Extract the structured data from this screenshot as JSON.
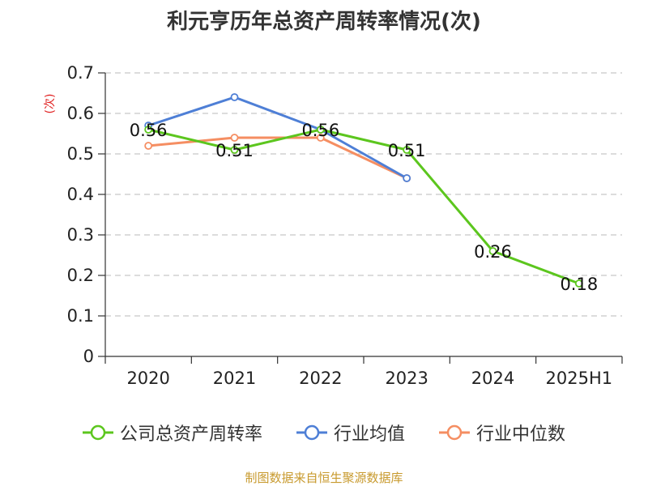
{
  "title": "利元亨历年总资产周转率情况(次)",
  "source_note": "制图数据来自恒生聚源数据库",
  "colors": {
    "company": "#5cc61e",
    "industry_avg": "#4e7fd6",
    "industry_median": "#f58e62"
  },
  "chart_data": {
    "type": "line",
    "title": "利元亨历年总资产周转率情况(次)",
    "ylabel": "(次)",
    "xlabel": "",
    "categories": [
      "2020",
      "2021",
      "2022",
      "2023",
      "2024",
      "2025H1"
    ],
    "ylim": [
      0,
      0.7
    ],
    "yticks": [
      0,
      0.1,
      0.2,
      0.3,
      0.4,
      0.5,
      0.6,
      0.7
    ],
    "ytick_labels": [
      "0",
      "0.1",
      "0.2",
      "0.3",
      "0.4",
      "0.5",
      "0.6",
      "0.7"
    ],
    "grid": true,
    "legend_position": "bottom",
    "series": [
      {
        "name": "公司总资产周转率",
        "color": "#5cc61e",
        "values": [
          0.56,
          0.51,
          0.56,
          0.51,
          0.26,
          0.18
        ],
        "labels": [
          "0.56",
          "0.51",
          "0.56",
          "0.51",
          "0.26",
          "0.18"
        ]
      },
      {
        "name": "行业均值",
        "color": "#4e7fd6",
        "values": [
          0.57,
          0.64,
          0.56,
          0.44,
          null,
          null
        ]
      },
      {
        "name": "行业中位数",
        "color": "#f58e62",
        "values": [
          0.52,
          0.54,
          0.54,
          0.44,
          null,
          null
        ]
      }
    ]
  }
}
